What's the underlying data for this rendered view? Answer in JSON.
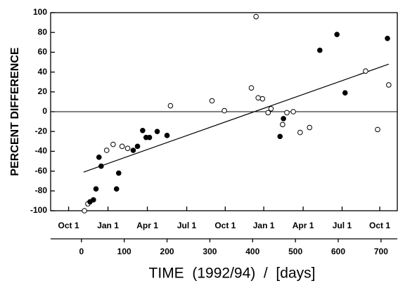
{
  "chart_data": {
    "type": "scatter",
    "ylabel": "PERCENT DIFFERENCE",
    "xlabel": "TIME  (1992/94)  /  [days]",
    "xlim": [
      -72,
      738
    ],
    "ylim": [
      -100,
      100
    ],
    "xticks": [
      0,
      100,
      200,
      300,
      400,
      500,
      600,
      700
    ],
    "yticks": [
      -100,
      -80,
      -60,
      -40,
      -20,
      0,
      20,
      40,
      60,
      80,
      100
    ],
    "x2ticks": [
      {
        "value": -30,
        "label": "Oct 1"
      },
      {
        "value": 62,
        "label": "Jan 1"
      },
      {
        "value": 154,
        "label": "Apr 1"
      },
      {
        "value": 246,
        "label": "Jul 1"
      },
      {
        "value": 336,
        "label": "Oct 1"
      },
      {
        "value": 426,
        "label": "Jan 1"
      },
      {
        "value": 518,
        "label": "Apr 1"
      },
      {
        "value": 609,
        "label": "Jul 1"
      },
      {
        "value": 697,
        "label": "Oct 1"
      }
    ],
    "zero_line": 0,
    "series": [
      {
        "marker": "open",
        "color": "#000000",
        "x": [
          7,
          15,
          59,
          74,
          95,
          108,
          208,
          305,
          334,
          397,
          408,
          413,
          423,
          436,
          443,
          470,
          480,
          495,
          511,
          533,
          664,
          692,
          718
        ],
        "values": [
          -100,
          -93,
          -39,
          -33,
          -35,
          -37,
          6,
          11,
          1,
          24,
          96,
          14,
          13,
          -1,
          3,
          -13,
          -1,
          0,
          -21,
          -16,
          41,
          -18,
          27
        ]
      },
      {
        "marker": "filled",
        "color": "#000000",
        "x": [
          20,
          28,
          34,
          41,
          46,
          82,
          87,
          121,
          131,
          143,
          151,
          159,
          177,
          200,
          464,
          472,
          557,
          597,
          616,
          715
        ],
        "values": [
          -91,
          -89,
          -78,
          -46,
          -55,
          -78,
          -62,
          -39,
          -35,
          -19,
          -26,
          -26,
          -20,
          -24,
          -25,
          -7,
          62,
          78,
          19,
          74
        ]
      }
    ],
    "fit": {
      "color": "#000000",
      "x": [
        5,
        718
      ],
      "values": [
        -61,
        48
      ]
    }
  }
}
